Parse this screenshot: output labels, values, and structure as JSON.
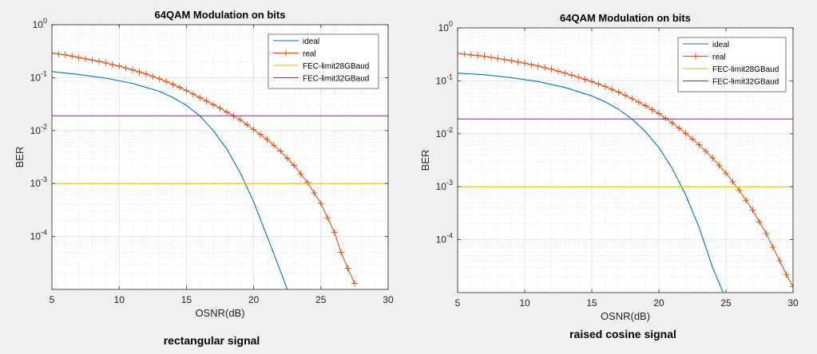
{
  "chart_data": [
    {
      "type": "line",
      "title": "64QAM Modulation on bits",
      "xlabel": "OSNR(dB)",
      "ylabel": "BER",
      "caption": "rectangular signal",
      "xlim": [
        5,
        30
      ],
      "ylim": [
        1e-05,
        1
      ],
      "yscale": "log",
      "xticks": [
        "5",
        "10",
        "15",
        "20",
        "25",
        "30"
      ],
      "yticks": [
        {
          "base": "10",
          "exp": "0",
          "value": 1
        },
        {
          "base": "10",
          "exp": "-1",
          "value": 0.1
        },
        {
          "base": "10",
          "exp": "-2",
          "value": 0.01
        },
        {
          "base": "10",
          "exp": "-3",
          "value": 0.001
        },
        {
          "base": "10",
          "exp": "-4",
          "value": 0.0001
        }
      ],
      "grid": true,
      "legend_position": "top-right",
      "series": [
        {
          "name": "ideal",
          "color": "#0072bd",
          "marker": "none",
          "x": [
            5,
            7,
            9,
            11,
            13,
            14,
            15,
            16,
            17,
            18,
            19,
            20,
            21,
            22,
            22.5
          ],
          "y": [
            0.13,
            0.115,
            0.098,
            0.078,
            0.055,
            0.042,
            0.03,
            0.019,
            0.01,
            0.0045,
            0.0016,
            0.00045,
            0.0001,
            2.2e-05,
            1e-05
          ]
        },
        {
          "name": "real",
          "color": "#d95319",
          "marker": "plus",
          "x": [
            5,
            6,
            7,
            8,
            9,
            10,
            11,
            12,
            13,
            14,
            15,
            16,
            17,
            18,
            19,
            20,
            21,
            22,
            23,
            24,
            25,
            26,
            26.5,
            27,
            27.5
          ],
          "y": [
            0.29,
            0.27,
            0.24,
            0.215,
            0.19,
            0.165,
            0.14,
            0.117,
            0.095,
            0.075,
            0.057,
            0.042,
            0.031,
            0.0225,
            0.016,
            0.0105,
            0.0068,
            0.0041,
            0.0022,
            0.00105,
            0.00042,
            0.00012,
            5e-05,
            2.5e-05,
            1.3e-05
          ]
        },
        {
          "name": "FEC-limit28GBaud",
          "color": "#edb120",
          "marker": "none",
          "constant": 0.001
        },
        {
          "name": "FEC-limit32GBaud",
          "color": "#7e2f8e",
          "marker": "none",
          "constant": 0.019
        }
      ]
    },
    {
      "type": "line",
      "title": "64QAM Modulation on bits",
      "xlabel": "OSNR(dB)",
      "ylabel": "BER",
      "caption": "raised cosine signal",
      "xlim": [
        5,
        30
      ],
      "ylim": [
        1e-05,
        1
      ],
      "yscale": "log",
      "xticks": [
        "5",
        "10",
        "15",
        "20",
        "25",
        "30"
      ],
      "yticks": [
        {
          "base": "10",
          "exp": "0",
          "value": 1
        },
        {
          "base": "10",
          "exp": "-1",
          "value": 0.1
        },
        {
          "base": "10",
          "exp": "-2",
          "value": 0.01
        },
        {
          "base": "10",
          "exp": "-3",
          "value": 0.001
        },
        {
          "base": "10",
          "exp": "-4",
          "value": 0.0001
        }
      ],
      "grid": true,
      "legend_position": "top-right",
      "series": [
        {
          "name": "ideal",
          "color": "#0072bd",
          "marker": "none",
          "x": [
            5,
            7,
            9,
            11,
            13,
            15,
            16,
            17,
            18,
            19,
            20,
            21,
            22,
            23,
            24,
            24.8
          ],
          "y": [
            0.14,
            0.13,
            0.115,
            0.097,
            0.075,
            0.052,
            0.04,
            0.029,
            0.019,
            0.011,
            0.0055,
            0.0022,
            0.0007,
            0.00017,
            3e-05,
            1e-05
          ]
        },
        {
          "name": "real",
          "color": "#d95319",
          "marker": "plus",
          "x": [
            5,
            6,
            7,
            8,
            9,
            10,
            11,
            12,
            13,
            14,
            15,
            16,
            17,
            18,
            19,
            20,
            21,
            22,
            23,
            24,
            25,
            26,
            27,
            28,
            29,
            29.5,
            30
          ],
          "y": [
            0.33,
            0.31,
            0.29,
            0.265,
            0.24,
            0.215,
            0.19,
            0.165,
            0.14,
            0.117,
            0.097,
            0.078,
            0.061,
            0.046,
            0.034,
            0.024,
            0.016,
            0.0102,
            0.0062,
            0.0035,
            0.0018,
            0.00085,
            0.00036,
            0.00013,
            4e-05,
            2.2e-05,
            1.3e-05
          ]
        },
        {
          "name": "FEC-limit28GBaud",
          "color": "#edb120",
          "marker": "none",
          "constant": 0.001
        },
        {
          "name": "FEC-limit32GBaud",
          "color": "#7e2f8e",
          "marker": "none",
          "constant": 0.019
        }
      ]
    }
  ]
}
